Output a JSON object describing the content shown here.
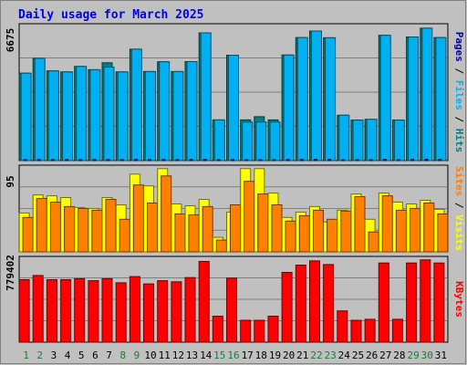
{
  "chart_data": [
    {
      "type": "bar",
      "title": "Daily usage for March 2025",
      "categories": [
        "1",
        "2",
        "3",
        "4",
        "5",
        "6",
        "7",
        "8",
        "9",
        "10",
        "11",
        "12",
        "13",
        "14",
        "15",
        "16",
        "17",
        "18",
        "19",
        "20",
        "21",
        "22",
        "23",
        "24",
        "25",
        "26",
        "27",
        "28",
        "29",
        "30",
        "31"
      ],
      "weekend_days": [
        "1",
        "2",
        "8",
        "9",
        "15",
        "16",
        "22",
        "23",
        "29",
        "30"
      ],
      "colors": {
        "weekday_label": "#000000",
        "weekend_label": "#1a7a3c"
      },
      "ymax_label": "6675",
      "legend": [
        "Pages",
        "Files",
        "Hits"
      ],
      "legend_separator": " / ",
      "series": [
        {
          "name": "Hits",
          "color": "#008080",
          "values": [
            4300,
            5030,
            4410,
            4360,
            4630,
            4470,
            4810,
            4360,
            5480,
            4380,
            4860,
            4380,
            4870,
            6280,
            2000,
            5180,
            2000,
            2160,
            2000,
            5190,
            6050,
            6370,
            6040,
            2230,
            1990,
            2030,
            6160,
            1990,
            6080,
            6510,
            6050
          ]
        },
        {
          "name": "Files",
          "color": "#00b0f0",
          "values": [
            4300,
            5030,
            4410,
            4360,
            4630,
            4470,
            4600,
            4360,
            5480,
            4380,
            4860,
            4380,
            4870,
            6280,
            2000,
            5180,
            1900,
            1900,
            1900,
            5190,
            6050,
            6370,
            6040,
            2230,
            1990,
            2030,
            6160,
            1990,
            6080,
            6510,
            6050
          ]
        },
        {
          "name": "Pages",
          "color": "#0000a0",
          "values": [
            50,
            55,
            50,
            52,
            48,
            52,
            55,
            50,
            58,
            50,
            54,
            50,
            55,
            60,
            30,
            55,
            28,
            26,
            27,
            56,
            60,
            62,
            58,
            32,
            30,
            31,
            60,
            30,
            58,
            62,
            58
          ]
        }
      ]
    },
    {
      "type": "bar",
      "ymax_label": "95",
      "legend": [
        "Sites",
        "Visits"
      ],
      "legend_separator": " / ",
      "series": [
        {
          "name": "Visits",
          "color": "#ffff00",
          "values": [
            43,
            63,
            62,
            60,
            49,
            48,
            60,
            52,
            86,
            73,
            92,
            53,
            51,
            58,
            16,
            44,
            92,
            92,
            65,
            38,
            44,
            50,
            33,
            46,
            64,
            36,
            65,
            55,
            53,
            57,
            47
          ]
        },
        {
          "name": "Sites",
          "color": "#ff8000",
          "values": [
            38,
            59,
            55,
            50,
            48,
            46,
            58,
            36,
            74,
            54,
            84,
            42,
            41,
            50,
            13,
            52,
            78,
            64,
            52,
            34,
            40,
            46,
            36,
            45,
            61,
            22,
            62,
            46,
            48,
            54,
            42
          ]
        }
      ]
    },
    {
      "type": "bar",
      "ymax_label": "779402",
      "legend": [
        "KBytes"
      ],
      "series": [
        {
          "name": "KBytes",
          "color": "#ff0000",
          "values": [
            600000,
            640000,
            600000,
            600000,
            610000,
            590000,
            610000,
            570000,
            630000,
            560000,
            590000,
            580000,
            620000,
            775000,
            250000,
            615000,
            210000,
            210000,
            250000,
            670000,
            740000,
            780000,
            745000,
            300000,
            210000,
            220000,
            760000,
            220000,
            760000,
            790000,
            760000
          ]
        }
      ]
    }
  ]
}
